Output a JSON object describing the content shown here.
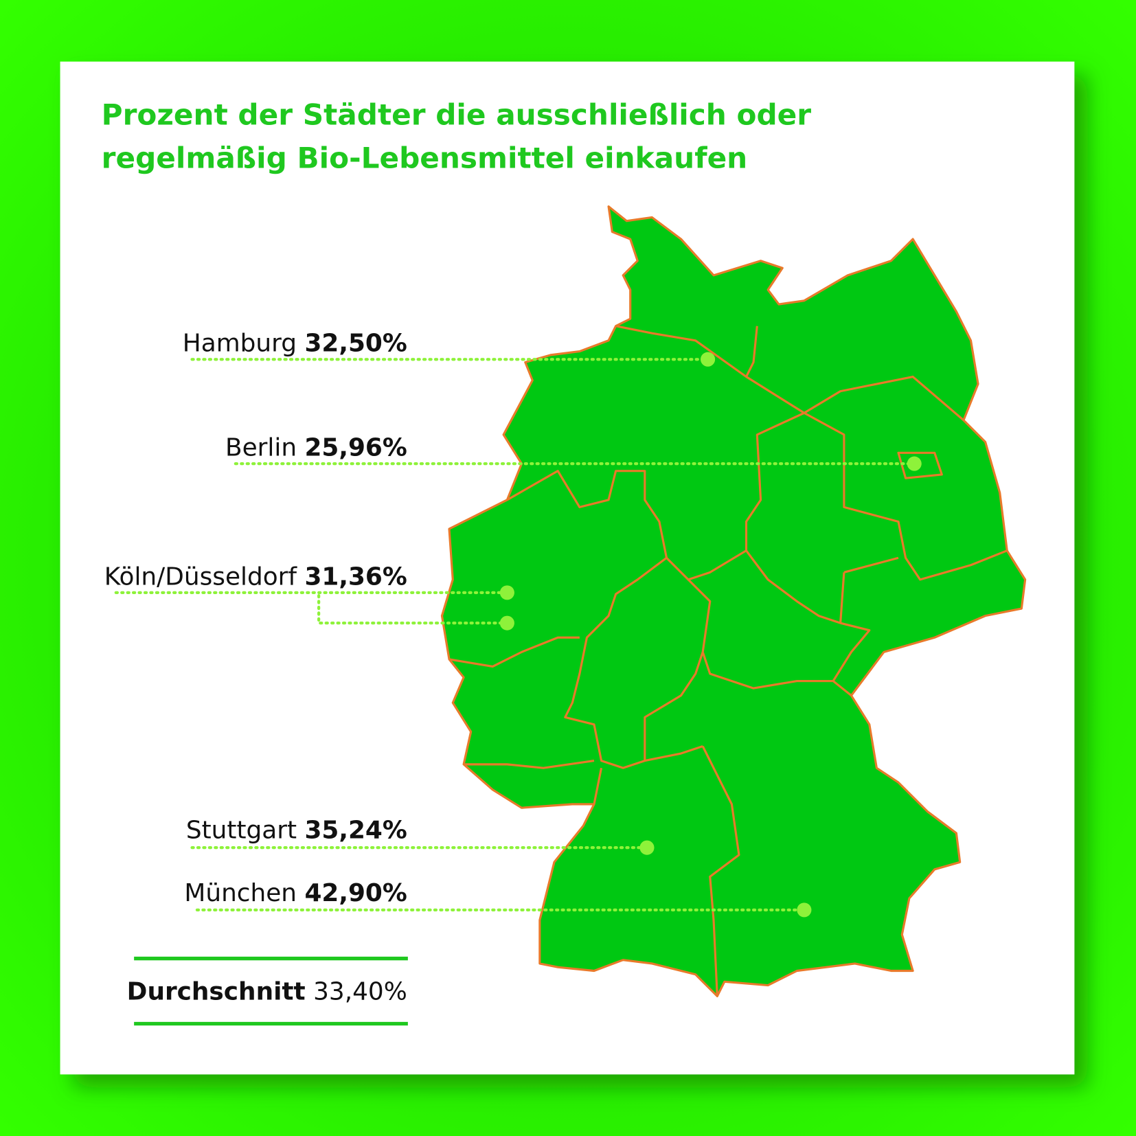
{
  "title": [
    "Prozent der Städter die ausschließlich oder",
    "regelmäßig Bio-Lebensmittel einkaufen"
  ],
  "cities": [
    {
      "name": "Hamburg",
      "value": "32,50%"
    },
    {
      "name": "Berlin",
      "value": "25,96%"
    },
    {
      "name": "Köln/Düsseldorf",
      "value": "31,36%"
    },
    {
      "name": "Stuttgart",
      "value": "35,24%"
    },
    {
      "name": "München",
      "value": "42,90%"
    }
  ],
  "average": {
    "label": "Durchschnitt",
    "value": "33,40%"
  }
}
